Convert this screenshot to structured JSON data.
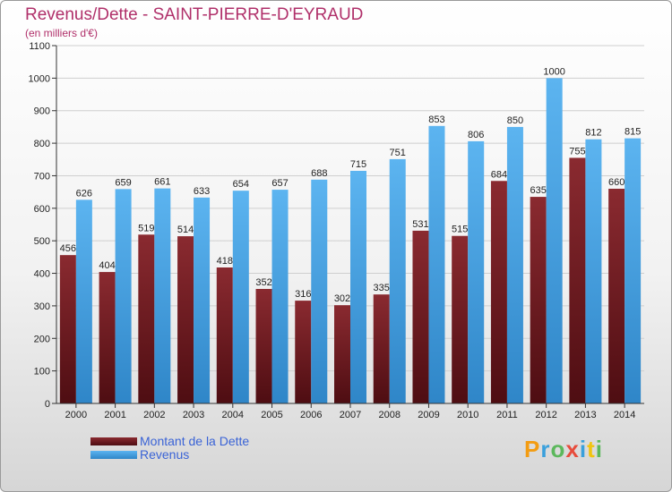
{
  "header": {
    "title": "Revenus/Dette - SAINT-PIERRE-D'EYRAUD",
    "subtitle": "(en milliers d'€)"
  },
  "legend": {
    "dette": "Montant de la Dette",
    "revenus": "Revenus"
  },
  "logo": {
    "text": "Proxiti"
  },
  "colors": {
    "dette": "#7a1f24",
    "revenus": "#4aa8e8",
    "axis": "#333333",
    "grid": "#cfcfcf",
    "title": "#b0306a",
    "legend_text": "#3a63d6"
  },
  "chart_data": {
    "type": "bar",
    "title": "Revenus/Dette - SAINT-PIERRE-D'EYRAUD",
    "subtitle": "(en milliers d'€)",
    "xlabel": "",
    "ylabel": "",
    "ylim": [
      0,
      1100
    ],
    "yticks": [
      0,
      100,
      200,
      300,
      400,
      500,
      600,
      700,
      800,
      900,
      1000,
      1100
    ],
    "grid": true,
    "legend_position": "bottom-left",
    "categories": [
      "2000",
      "2001",
      "2002",
      "2003",
      "2004",
      "2005",
      "2006",
      "2007",
      "2008",
      "2009",
      "2010",
      "2011",
      "2012",
      "2013",
      "2014"
    ],
    "series": [
      {
        "name": "Montant de la Dette",
        "values": [
          456,
          404,
          519,
          514,
          418,
          352,
          316,
          302,
          335,
          531,
          515,
          684,
          635,
          755,
          660
        ]
      },
      {
        "name": "Revenus",
        "values": [
          626,
          659,
          661,
          633,
          654,
          657,
          688,
          715,
          751,
          853,
          806,
          850,
          1000,
          812,
          815
        ]
      }
    ]
  }
}
